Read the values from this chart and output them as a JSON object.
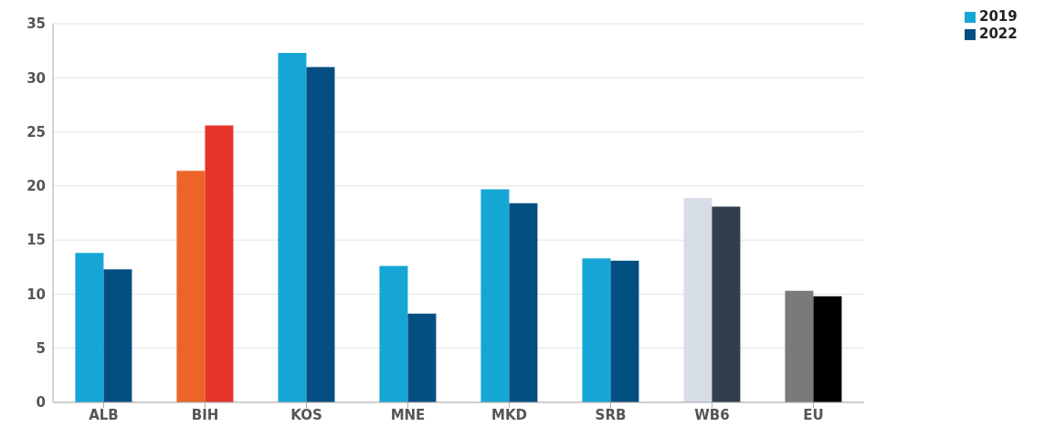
{
  "chart_data": {
    "type": "bar",
    "categories": [
      "ALB",
      "BIH",
      "KOS",
      "MNE",
      "MKD",
      "SRB",
      "WB6",
      "EU"
    ],
    "series": [
      {
        "name": "2019",
        "color": "#16a6d6",
        "colors": [
          "#16a6d6",
          "#eb6528",
          "#16a6d6",
          "#16a6d6",
          "#16a6d6",
          "#16a6d6",
          "#d7dde6",
          "#7a7a7a"
        ],
        "values": [
          13.8,
          21.4,
          32.3,
          12.6,
          19.7,
          13.3,
          18.9,
          10.3
        ]
      },
      {
        "name": "2022",
        "color": "#034f82",
        "colors": [
          "#034f82",
          "#e5352b",
          "#034f82",
          "#034f82",
          "#034f82",
          "#034f82",
          "#323e4e",
          "#000000"
        ],
        "values": [
          12.3,
          25.6,
          31.0,
          8.2,
          18.4,
          13.1,
          18.1,
          9.8
        ]
      }
    ],
    "ylim": [
      0,
      35
    ],
    "yticks": [
      0,
      5,
      10,
      15,
      20,
      25,
      30,
      35
    ],
    "grid": "y",
    "legend": "top right"
  }
}
